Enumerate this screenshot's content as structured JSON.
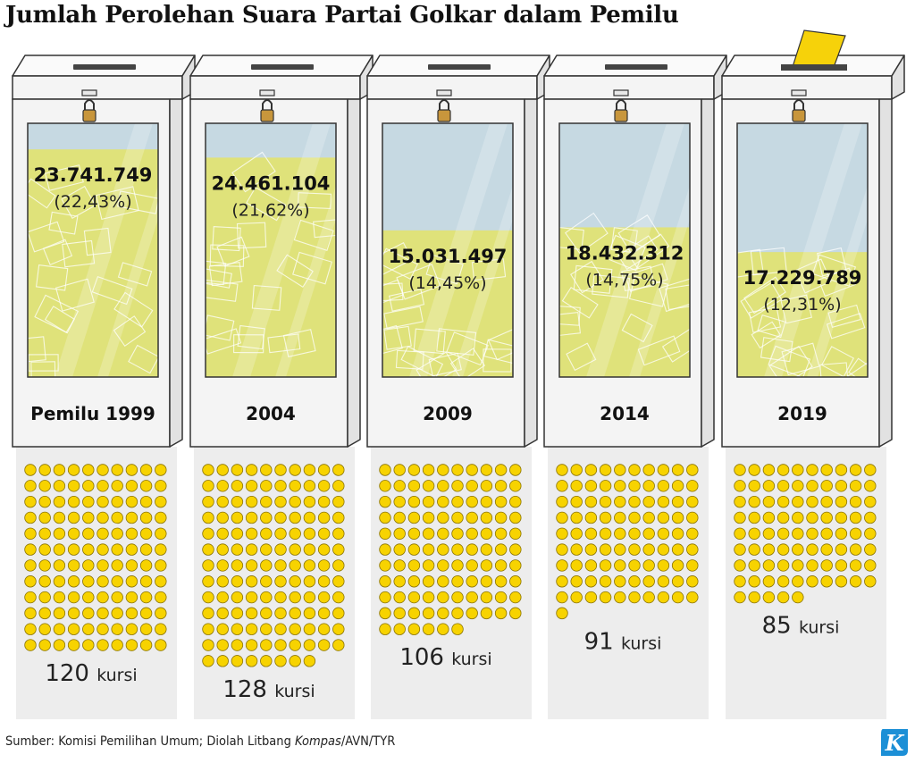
{
  "title": "Jumlah Perolehan Suara Partai Golkar dalam Pemilu",
  "source": {
    "prefix": "Sumber: Komisi Pemilihan Umum; Diolah Litbang ",
    "italic": "Kompas",
    "suffix": "/AVN/TYR"
  },
  "logo": {
    "letter": "K",
    "color": "#1c8fd6"
  },
  "colors": {
    "ballot": "#dfe27a",
    "ballot_line": "#c9cc55",
    "glass": "#c6d9e2",
    "seat": "#f7d300",
    "seat_stroke": "#8a7300",
    "box": "#f4f4f4",
    "box_side": "#e2e2e2",
    "shadow": "#ededed",
    "ballot_paper": "#f6d20a"
  },
  "chart_data": {
    "type": "pictograph",
    "title": "Jumlah Perolehan Suara Partai Golkar dalam Pemilu",
    "categories": [
      "Pemilu 1999",
      "2004",
      "2009",
      "2014",
      "2019"
    ],
    "series": [
      {
        "votes": [
          23741749,
          24461104,
          15031497,
          18432312,
          17229789
        ],
        "vote_labels": [
          "23.741.749",
          "24.461.104",
          "15.031.497",
          "18.432.312",
          "17.229.789"
        ]
      },
      {
        "percent": [
          22.43,
          21.62,
          14.45,
          14.75,
          12.31
        ],
        "percent_labels": [
          "(22,43%)",
          "(21,62%)",
          "(14,45%)",
          "(14,75%)",
          "(12,31%)"
        ]
      },
      {
        "seats": [
          120,
          128,
          106,
          91,
          85
        ],
        "seat_numbers": [
          "120",
          "128",
          "106",
          "91",
          "85"
        ],
        "seat_unit": "kursi"
      }
    ],
    "fill_scale_max_percent": 25
  }
}
